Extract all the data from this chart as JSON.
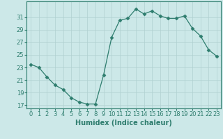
{
  "x": [
    0,
    1,
    2,
    3,
    4,
    5,
    6,
    7,
    8,
    9,
    10,
    11,
    12,
    13,
    14,
    15,
    16,
    17,
    18,
    19,
    20,
    21,
    22,
    23
  ],
  "y": [
    23.5,
    23.0,
    21.5,
    20.2,
    19.5,
    18.2,
    17.5,
    17.2,
    17.2,
    21.8,
    27.8,
    30.5,
    30.8,
    32.3,
    31.5,
    32.0,
    31.2,
    30.8,
    30.8,
    31.2,
    29.2,
    28.0,
    25.8,
    24.8
  ],
  "xlabel": "Humidex (Indice chaleur)",
  "xlim": [
    -0.5,
    23.5
  ],
  "ylim": [
    16.5,
    33.5
  ],
  "yticks": [
    17,
    19,
    21,
    23,
    25,
    27,
    29,
    31
  ],
  "xticks": [
    0,
    1,
    2,
    3,
    4,
    5,
    6,
    7,
    8,
    9,
    10,
    11,
    12,
    13,
    14,
    15,
    16,
    17,
    18,
    19,
    20,
    21,
    22,
    23
  ],
  "line_color": "#2e7d6e",
  "marker": "D",
  "marker_size": 2.5,
  "bg_color": "#cce8e8",
  "grid_color": "#b0d0d0",
  "label_fontsize": 7,
  "tick_fontsize": 6
}
